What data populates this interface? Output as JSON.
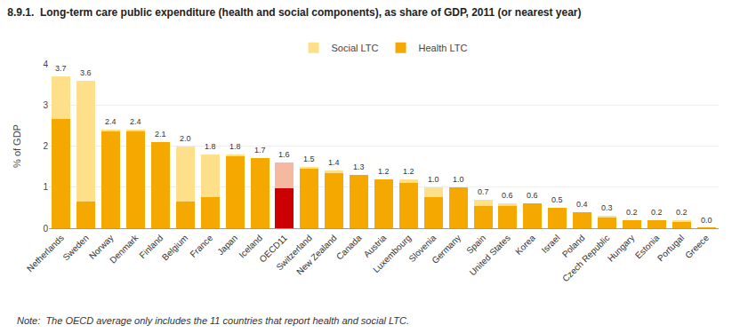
{
  "chart_data": {
    "type": "bar",
    "stacked": true,
    "title": "8.9.1.  Long-term care public expenditure (health and social components), as share of GDP, 2011 (or nearest year)",
    "ylabel": "% of GDP",
    "note": "Note:  The OECD average only includes the 11 countries that report health and social LTC.",
    "categories": [
      "Netherlands",
      "Sweden",
      "Norway",
      "Denmark",
      "Finland",
      "Belgium",
      "France",
      "Japan",
      "Iceland",
      "OECD11",
      "Switzerland",
      "New Zealand",
      "Canada",
      "Austria",
      "Luxembourg",
      "Slovenia",
      "Germany",
      "Spain",
      "United States",
      "Korea",
      "Israel",
      "Poland",
      "Czech Republic",
      "Hungary",
      "Estonia",
      "Portugal",
      "Greece"
    ],
    "series": [
      {
        "name": "Health LTC",
        "color": "#F5A800",
        "colors": [
          "#F5A800",
          "#F5A800",
          "#F5A800",
          "#F5A800",
          "#F5A800",
          "#F5A800",
          "#F5A800",
          "#F5A800",
          "#F5A800",
          "#CC0000",
          "#F5A800",
          "#F5A800",
          "#F5A800",
          "#F5A800",
          "#F5A800",
          "#F5A800",
          "#F5A800",
          "#F5A800",
          "#F5A800",
          "#F5A800",
          "#F5A800",
          "#F5A800",
          "#F5A800",
          "#F5A800",
          "#F5A800",
          "#F5A800",
          "#F5A800"
        ],
        "values": [
          2.65,
          0.65,
          2.35,
          2.35,
          2.1,
          0.65,
          0.75,
          1.75,
          1.7,
          0.97,
          1.45,
          1.35,
          1.3,
          1.2,
          1.1,
          0.75,
          1.0,
          0.55,
          0.55,
          0.6,
          0.5,
          0.4,
          0.25,
          0.2,
          0.2,
          0.15,
          0.02
        ]
      },
      {
        "name": "Social LTC",
        "color": "#FFE08A",
        "colors": [
          "#FFE08A",
          "#FFE08A",
          "#FFE08A",
          "#FFE08A",
          "#FFE08A",
          "#FFE08A",
          "#FFE08A",
          "#FFE08A",
          "#FFE08A",
          "#F5B8A0",
          "#FFE08A",
          "#FFE08A",
          "#FFE08A",
          "#FFE08A",
          "#FFE08A",
          "#FFE08A",
          "#FFE08A",
          "#FFE08A",
          "#FFE08A",
          "#FFE08A",
          "#FFE08A",
          "#FFE08A",
          "#FFE08A",
          "#FFE08A",
          "#FFE08A",
          "#FFE08A",
          "#FFE08A"
        ],
        "values": [
          1.05,
          2.95,
          0.05,
          0.05,
          0.0,
          1.35,
          1.05,
          0.05,
          0.0,
          0.63,
          0.05,
          0.05,
          0.0,
          0.0,
          0.1,
          0.25,
          0.0,
          0.15,
          0.05,
          0.0,
          0.0,
          0.0,
          0.05,
          0.0,
          0.0,
          0.05,
          0.0
        ]
      }
    ],
    "totals": {
      "values": [
        3.7,
        3.6,
        2.4,
        2.4,
        2.1,
        2.0,
        1.8,
        1.8,
        1.7,
        1.6,
        1.5,
        1.4,
        1.3,
        1.2,
        1.2,
        1.0,
        1.0,
        0.7,
        0.6,
        0.6,
        0.5,
        0.4,
        0.3,
        0.2,
        0.2,
        0.2,
        0.0
      ],
      "value_labels": [
        "3.7",
        "3.6",
        "2.4",
        "2.4",
        "2.1",
        "2.0",
        "1.8",
        "1.8",
        "1.7",
        "1.6",
        "1.5",
        "1.4",
        "1.3",
        "1.2",
        "1.2",
        "1.0",
        "1.0",
        "0.7",
        "0.6",
        "0.6",
        "0.5",
        "0.4",
        "0.3",
        "0.2",
        "0.2",
        "0.2",
        "0.0"
      ]
    },
    "ylim": [
      0,
      4
    ],
    "yticks": [
      0,
      1,
      2,
      3,
      4
    ],
    "grid": true,
    "legend": "top"
  }
}
